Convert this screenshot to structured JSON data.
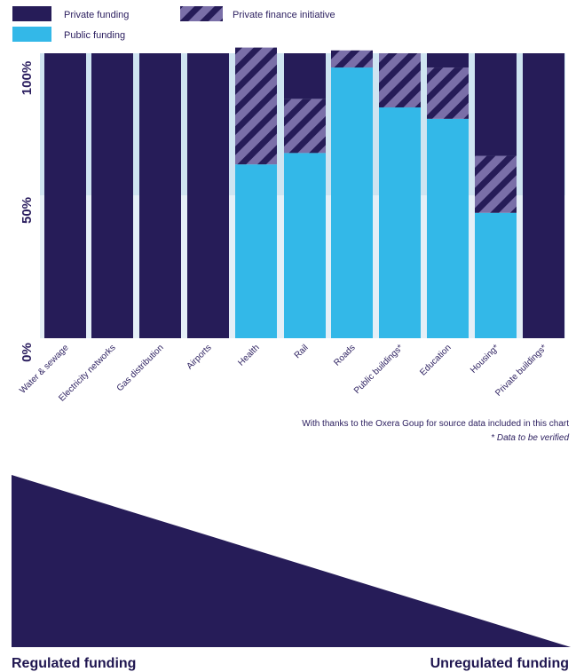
{
  "colors": {
    "private": "#261c58",
    "public": "#33b8e8",
    "pfi_base": "#7a6fa8",
    "pfi_stripe": "#261c58",
    "band_upper": "#cfe4f1",
    "band_lower": "#e5eff7",
    "text": "#2a1d5e",
    "triangle": "#261c58"
  },
  "legend": {
    "private": "Private funding",
    "public": "Public funding",
    "pfi": "Private finance initiative"
  },
  "notes": {
    "source": "With thanks to the Oxera Goup for source data included in this chart",
    "verify": "* Data to be verified"
  },
  "bottom": {
    "left_label": "Regulated funding",
    "right_label": "Unregulated funding"
  },
  "chart_data": {
    "type": "bar",
    "stacked": true,
    "categories": [
      "Water & sewage",
      "Electricity networks",
      "Gas distribution",
      "Airports",
      "Health",
      "Rail",
      "Roads",
      "Public buildings*",
      "Education",
      "Housing*",
      "Private buildings*"
    ],
    "series": [
      {
        "name": "Public funding",
        "values": [
          0,
          0,
          0,
          0,
          61,
          65,
          95,
          81,
          77,
          44,
          0
        ]
      },
      {
        "name": "Private finance initiative",
        "values": [
          0,
          0,
          0,
          0,
          41,
          19,
          6,
          19,
          18,
          20,
          0
        ]
      },
      {
        "name": "Private funding",
        "values": [
          100,
          100,
          100,
          100,
          0,
          16,
          0,
          0,
          5,
          36,
          100
        ]
      }
    ],
    "ylim": [
      0,
      100
    ],
    "yticks": [
      "0%",
      "50%",
      "100%"
    ],
    "ytick_values": [
      0,
      50,
      100
    ]
  }
}
